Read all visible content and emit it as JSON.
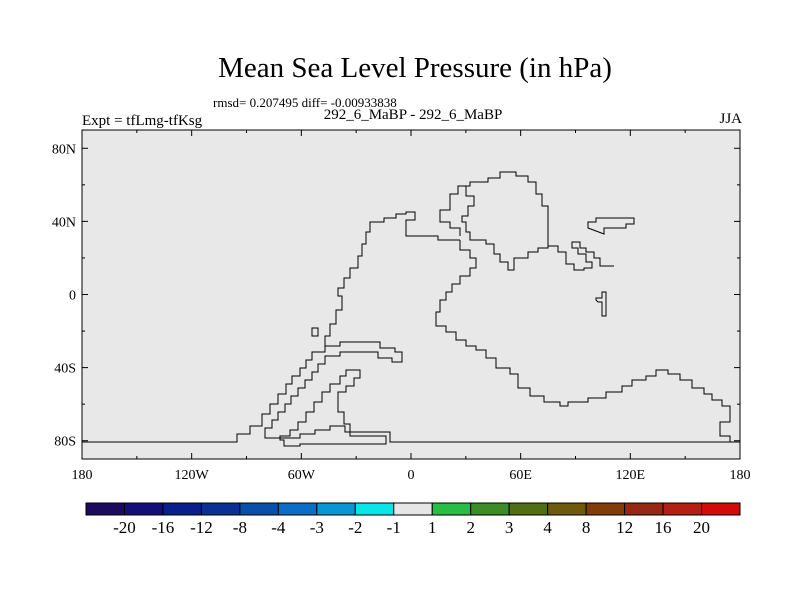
{
  "header": {
    "title": "Mean Sea Level Pressure (in hPa)",
    "stats": "rmsd= 0.207495 diff= -0.00933838",
    "case": "292_6_MaBP - 292_6_MaBP",
    "expt": "Expt = tfLmg-tfKsg",
    "season": "JJA"
  },
  "colors": {
    "field": "#e8e8e8",
    "coast": "#000000"
  },
  "chart_data": {
    "type": "heatmap",
    "title": "Mean Sea Level Pressure (in hPa)",
    "xlabel": "",
    "ylabel": "",
    "xlim": [
      -180,
      180
    ],
    "ylim": [
      -90,
      90
    ],
    "x_ticks": [
      {
        "value": -180,
        "label": "180"
      },
      {
        "value": -120,
        "label": "120W"
      },
      {
        "value": -60,
        "label": "60W"
      },
      {
        "value": 0,
        "label": "0"
      },
      {
        "value": 60,
        "label": "60E"
      },
      {
        "value": 120,
        "label": "120E"
      },
      {
        "value": 180,
        "label": "180"
      }
    ],
    "y_ticks": [
      {
        "value": 80,
        "label": "80N"
      },
      {
        "value": 40,
        "label": "40N"
      },
      {
        "value": 0,
        "label": "0"
      },
      {
        "value": -40,
        "label": "40S"
      },
      {
        "value": -80,
        "label": "80S"
      }
    ],
    "field_value_range": [
      -1,
      1
    ],
    "colorbar": {
      "labels": [
        "-20",
        "-16",
        "-12",
        "-8",
        "-4",
        "-3",
        "-2",
        "-1",
        "1",
        "2",
        "3",
        "4",
        "8",
        "12",
        "16",
        "20"
      ],
      "colors": [
        "#1c0a5e",
        "#140e7a",
        "#0a1e8c",
        "#0a3096",
        "#0a50aa",
        "#0a6ec8",
        "#0a96d2",
        "#0ae6e6",
        "#e6e6e6",
        "#28be46",
        "#3c8c28",
        "#506e14",
        "#6e5a0a",
        "#823c0a",
        "#962814",
        "#b41e14",
        "#d20a0a"
      ]
    }
  }
}
